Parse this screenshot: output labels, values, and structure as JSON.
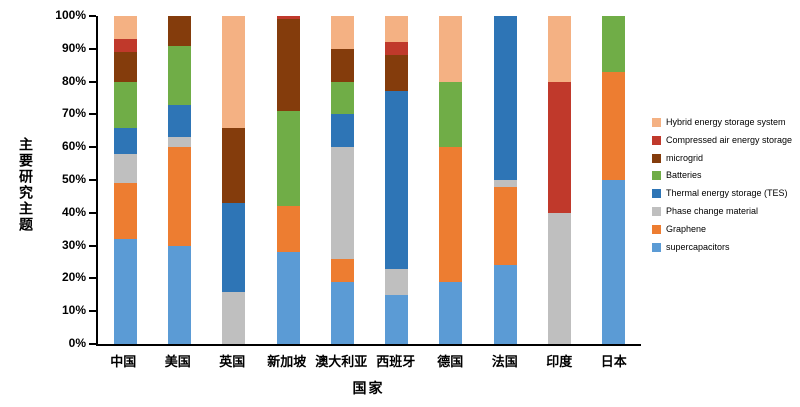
{
  "chart_data": {
    "type": "bar",
    "stacked": true,
    "percent": true,
    "title": "",
    "xlabel": "国家",
    "ylabel": "主要研究主题",
    "ylim": [
      0,
      100
    ],
    "grid": false,
    "stack_order": "bottom_to_top",
    "ytick_labels": [
      "0%",
      "10%",
      "20%",
      "30%",
      "40%",
      "50%",
      "60%",
      "70%",
      "80%",
      "90%",
      "100%"
    ],
    "categories": [
      "中国",
      "美国",
      "英国",
      "新加坡",
      "澳大利亚",
      "西班牙",
      "德国",
      "法国",
      "印度",
      "日本"
    ],
    "series": [
      {
        "name": "supercapacitors",
        "color": "#5B9BD5",
        "values": [
          32,
          30,
          0,
          28,
          19,
          15,
          19,
          24,
          0,
          50
        ]
      },
      {
        "name": "Graphene",
        "color": "#ED7D31",
        "values": [
          17,
          30,
          0,
          14,
          7,
          0,
          41,
          24,
          0,
          33
        ]
      },
      {
        "name": "Phase change material",
        "color": "#BFBFBF",
        "values": [
          9,
          3,
          16,
          0,
          34,
          8,
          0,
          2,
          40,
          0
        ]
      },
      {
        "name": "Thermal energy storage (TES)",
        "color": "#2E75B6",
        "values": [
          8,
          10,
          27,
          0,
          10,
          54,
          0,
          50,
          0,
          0
        ]
      },
      {
        "name": "Batteries",
        "color": "#70AD47",
        "values": [
          14,
          18,
          0,
          29,
          10,
          0,
          20,
          0,
          0,
          17
        ]
      },
      {
        "name": "microgrid",
        "color": "#843C0C",
        "values": [
          9,
          9,
          23,
          28,
          10,
          11,
          0,
          0,
          0,
          0
        ]
      },
      {
        "name": "Compressed air energy storage",
        "color": "#C0392B",
        "values": [
          4,
          0,
          0,
          1,
          0,
          4,
          0,
          0,
          40,
          0
        ]
      },
      {
        "name": "Hybrid energy storage system",
        "color": "#F4B183",
        "values": [
          7,
          0,
          34,
          0,
          10,
          8,
          20,
          0,
          20,
          0
        ]
      }
    ],
    "legend": {
      "position": "right",
      "items_top_to_bottom": [
        "Hybrid energy storage system",
        "Compressed air energy storage",
        "microgrid",
        "Batteries",
        "Thermal energy storage (TES)",
        "Phase change material",
        "Graphene",
        "supercapacitors"
      ]
    }
  }
}
